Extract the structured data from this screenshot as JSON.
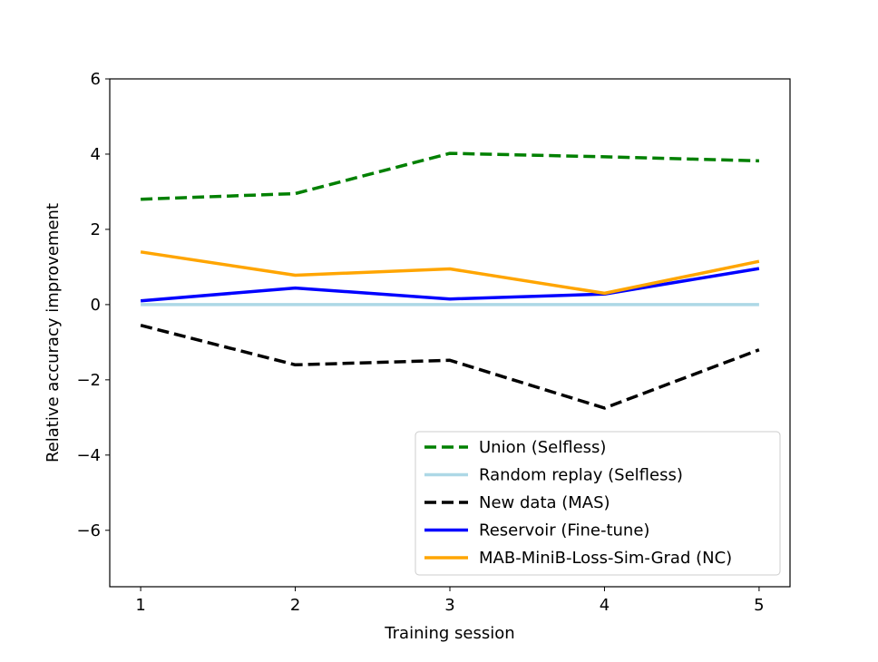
{
  "chart_data": {
    "type": "line",
    "title": "",
    "xlabel": "Training session",
    "ylabel": "Relative accuracy improvement",
    "x": [
      1,
      2,
      3,
      4,
      5
    ],
    "xticks": [
      1,
      2,
      3,
      4,
      5
    ],
    "yticks": [
      -6,
      -4,
      -2,
      0,
      2,
      4,
      6
    ],
    "xlim": [
      0.8,
      5.2
    ],
    "ylim": [
      -7.5,
      6
    ],
    "grid": false,
    "legend_position": "lower-right",
    "series": [
      {
        "name": "Union (Selfless)",
        "values": [
          2.8,
          2.95,
          4.02,
          3.93,
          3.82
        ],
        "color": "#008000",
        "style": "dashed"
      },
      {
        "name": "Random replay (Selfless)",
        "values": [
          0,
          0,
          0,
          0,
          0
        ],
        "color": "#add8e6",
        "style": "solid"
      },
      {
        "name": "New data (MAS)",
        "values": [
          -0.55,
          -1.6,
          -1.48,
          -2.75,
          -1.2
        ],
        "color": "#000000",
        "style": "dashed"
      },
      {
        "name": "Reservoir (Fine-tune)",
        "values": [
          0.1,
          0.44,
          0.15,
          0.28,
          0.96
        ],
        "color": "#0000ff",
        "style": "solid"
      },
      {
        "name": "MAB-MiniB-Loss-Sim-Grad (NC)",
        "values": [
          1.4,
          0.78,
          0.95,
          0.3,
          1.15
        ],
        "color": "#ffa500",
        "style": "solid"
      }
    ]
  }
}
